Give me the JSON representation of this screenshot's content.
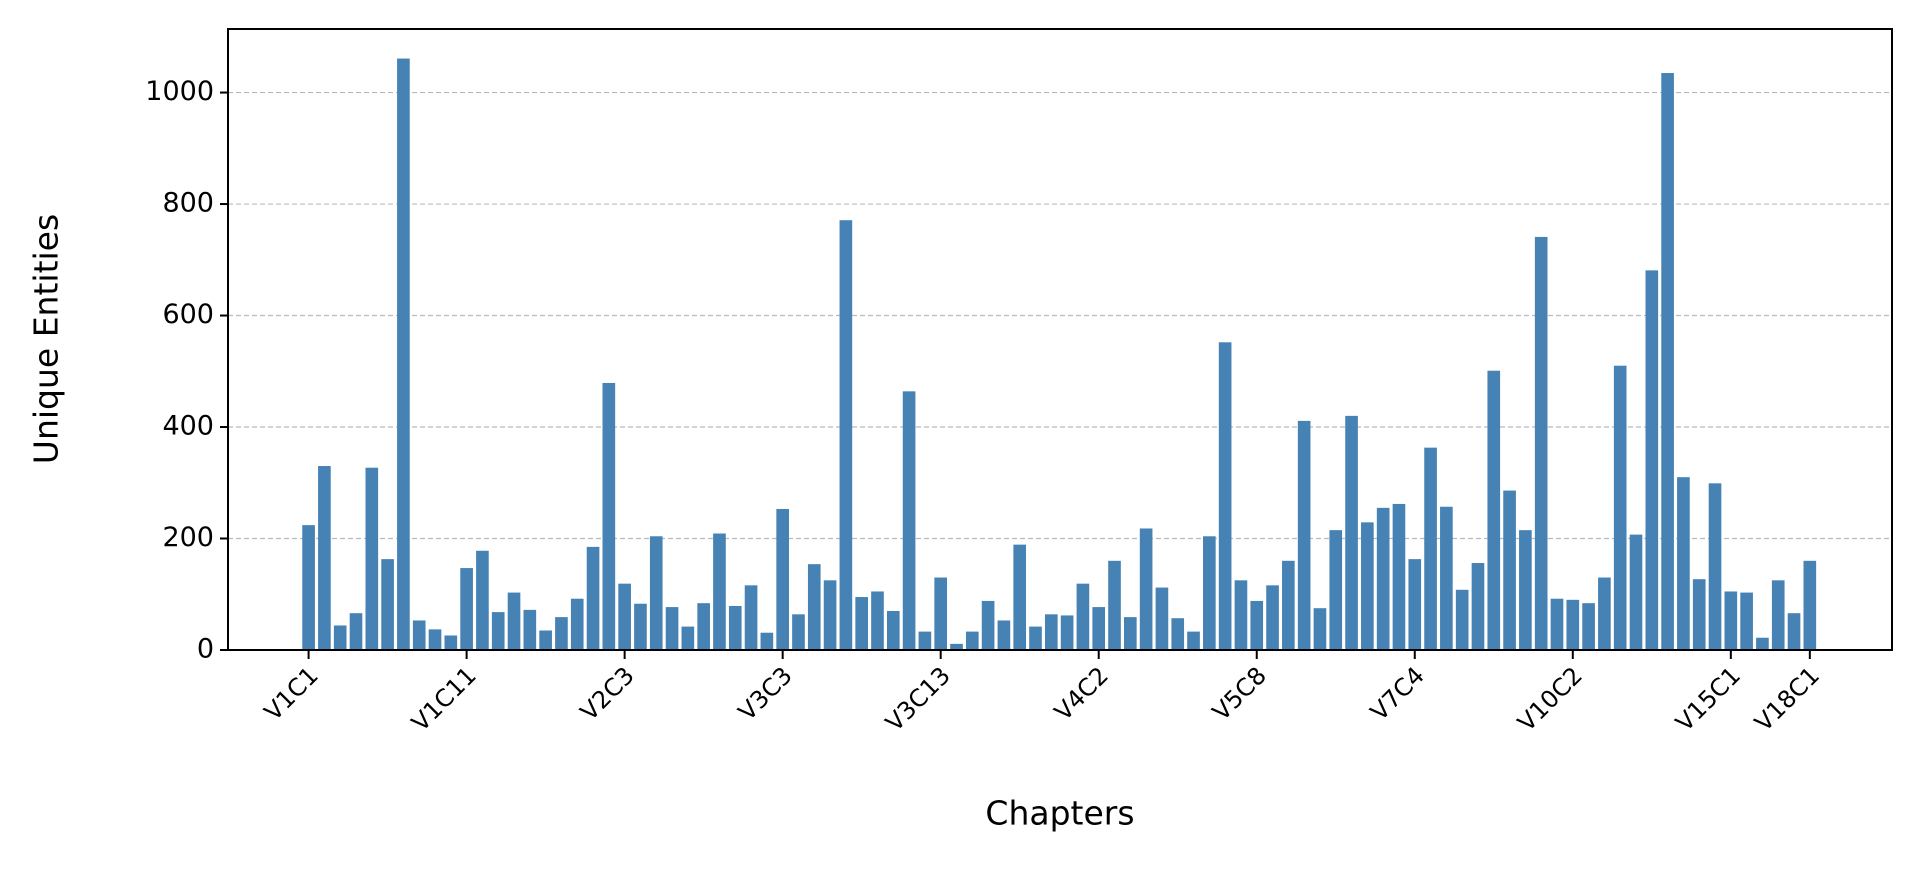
{
  "chart_data": {
    "type": "bar",
    "x_label": "Chapters",
    "y_label": "Unique Entities",
    "categories": [
      "V1C1",
      null,
      null,
      null,
      null,
      null,
      null,
      null,
      null,
      null,
      "V1C11",
      null,
      null,
      null,
      null,
      null,
      null,
      null,
      null,
      null,
      "V2C3",
      null,
      null,
      null,
      null,
      null,
      null,
      null,
      null,
      null,
      "V3C3",
      null,
      null,
      null,
      null,
      null,
      null,
      null,
      null,
      null,
      "V3C13",
      null,
      null,
      null,
      null,
      null,
      null,
      null,
      null,
      null,
      "V4C2",
      null,
      null,
      null,
      null,
      null,
      null,
      null,
      null,
      null,
      "V5C8",
      null,
      null,
      null,
      null,
      null,
      null,
      null,
      null,
      null,
      "V7C4",
      null,
      null,
      null,
      null,
      null,
      null,
      null,
      null,
      null,
      "V10C2",
      null,
      null,
      null,
      null,
      null,
      null,
      null,
      null,
      null,
      "V15C1",
      null,
      null,
      null,
      null,
      "V18C1"
    ],
    "values": [
      224,
      330,
      44,
      66,
      327,
      163,
      1061,
      53,
      37,
      26,
      147,
      178,
      68,
      103,
      72,
      35,
      59,
      92,
      185,
      479,
      119,
      83,
      204,
      77,
      42,
      84,
      209,
      79,
      116,
      31,
      253,
      64,
      154,
      125,
      771,
      95,
      105,
      70,
      464,
      33,
      130,
      11,
      33,
      88,
      53,
      189,
      42,
      64,
      62,
      119,
      77,
      160,
      59,
      218,
      112,
      57,
      33,
      204,
      552,
      125,
      88,
      116,
      160,
      411,
      75,
      215,
      420,
      229,
      255,
      262,
      163,
      363,
      257,
      108,
      156,
      501,
      286,
      215,
      741,
      92,
      90,
      84,
      130,
      510,
      207,
      681,
      1035,
      310,
      127,
      299,
      105,
      103,
      22,
      125,
      66,
      160
    ],
    "color": "#4682b4",
    "ylim": [
      0,
      1114
    ],
    "yticks": [
      0,
      200,
      400,
      600,
      800,
      1000
    ],
    "grid": true
  }
}
